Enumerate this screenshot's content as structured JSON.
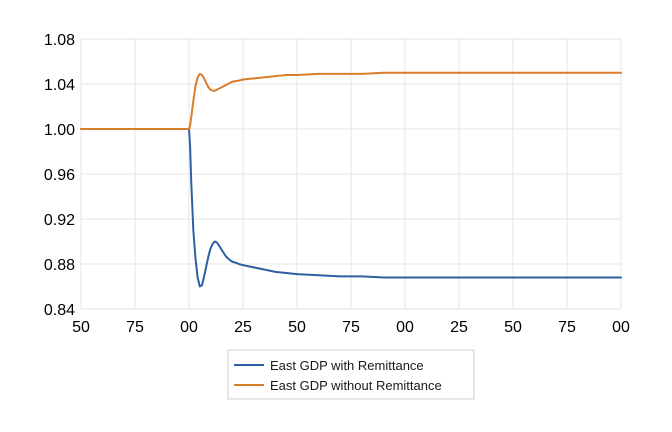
{
  "chart_data": {
    "type": "line",
    "title": "",
    "xlabel": "",
    "ylabel": "",
    "x_tick_labels": [
      "50",
      "75",
      "00",
      "25",
      "50",
      "75",
      "00",
      "25",
      "50",
      "75",
      "00"
    ],
    "x_tick_values": [
      -50,
      -25,
      0,
      25,
      50,
      75,
      100,
      125,
      150,
      175,
      200
    ],
    "xlim": [
      -50,
      200
    ],
    "ylim": [
      0.84,
      1.08
    ],
    "y_ticks": [
      0.84,
      0.88,
      0.92,
      0.96,
      1.0,
      1.04,
      1.08
    ],
    "y_tick_labels": [
      "0.84",
      "0.88",
      "0.92",
      "0.96",
      "1.00",
      "1.04",
      "1.08"
    ],
    "grid": true,
    "legend_position": "bottom-center",
    "series": [
      {
        "name": "East GDP with Remittance",
        "color": "#2e5fa3",
        "x": [
          -50,
          -25,
          0,
          0.5,
          1,
          2,
          3,
          4,
          5,
          6,
          7,
          8,
          9,
          10,
          11,
          12,
          13,
          14,
          15,
          16,
          17,
          18,
          20,
          22,
          23,
          25,
          30,
          35,
          40,
          45,
          50,
          60,
          70,
          80,
          90,
          100,
          120,
          140,
          160,
          180,
          200
        ],
        "y": [
          1.0,
          1.0,
          1.0,
          0.985,
          0.955,
          0.91,
          0.885,
          0.868,
          0.86,
          0.861,
          0.869,
          0.878,
          0.887,
          0.894,
          0.898,
          0.9,
          0.899,
          0.896,
          0.893,
          0.89,
          0.887,
          0.885,
          0.882,
          0.881,
          0.88,
          0.879,
          0.877,
          0.875,
          0.873,
          0.872,
          0.871,
          0.87,
          0.869,
          0.869,
          0.868,
          0.868,
          0.868,
          0.868,
          0.868,
          0.868,
          0.868
        ]
      },
      {
        "name": "East GDP without Remittance",
        "color": "#d97c2b",
        "x": [
          -50,
          -25,
          0,
          0.5,
          1,
          2,
          3,
          4,
          5,
          6,
          7,
          8,
          9,
          10,
          11,
          12,
          13,
          14,
          15,
          16,
          18,
          20,
          23,
          25,
          30,
          35,
          40,
          45,
          50,
          60,
          70,
          80,
          90,
          100,
          120,
          140,
          160,
          180,
          200
        ],
        "y": [
          1.0,
          1.0,
          1.0,
          1.003,
          1.01,
          1.025,
          1.038,
          1.046,
          1.049,
          1.048,
          1.045,
          1.041,
          1.037,
          1.035,
          1.034,
          1.034,
          1.035,
          1.036,
          1.037,
          1.038,
          1.04,
          1.042,
          1.043,
          1.044,
          1.045,
          1.046,
          1.047,
          1.048,
          1.048,
          1.049,
          1.049,
          1.049,
          1.05,
          1.05,
          1.05,
          1.05,
          1.05,
          1.05,
          1.05
        ]
      }
    ]
  }
}
